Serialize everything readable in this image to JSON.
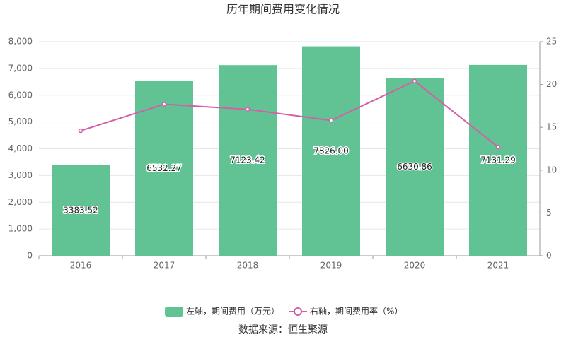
{
  "chart_data": {
    "type": "bar",
    "title": "历年期间费用变化情况",
    "categories": [
      "2016",
      "2017",
      "2018",
      "2019",
      "2020",
      "2021"
    ],
    "series": [
      {
        "name": "左轴，期间费用（万元）",
        "type": "bar",
        "color": "#61c394",
        "values": [
          3383.52,
          6532.27,
          7123.42,
          7826.0,
          6630.86,
          7131.29
        ],
        "value_labels": [
          "3383.52",
          "6532.27",
          "7123.42",
          "7826.00",
          "6630.86",
          "7131.29"
        ]
      },
      {
        "name": "右轴，期间费用率（%）",
        "type": "line",
        "axis": "y2",
        "color": "#d45fa8",
        "values": [
          14.6,
          17.7,
          17.1,
          15.8,
          20.4,
          12.7
        ]
      }
    ],
    "ylim": [
      0,
      8000
    ],
    "yticks": [
      0,
      {
        "value": 1000,
        "label": "1,000"
      },
      {
        "value": 2000,
        "label": "2,000"
      },
      {
        "value": 3000,
        "label": "3,000"
      },
      {
        "value": 4000,
        "label": "4,000"
      },
      {
        "value": 5000,
        "label": "5,000"
      },
      {
        "value": 6000,
        "label": "6,000"
      },
      {
        "value": 7000,
        "label": "7,000"
      },
      {
        "value": 8000,
        "label": "8,000"
      }
    ],
    "y2lim": [
      0,
      25
    ],
    "y2ticks": [
      0,
      5,
      10,
      15,
      20,
      25
    ],
    "grid": true,
    "source": "数据来源：恒生聚源"
  }
}
